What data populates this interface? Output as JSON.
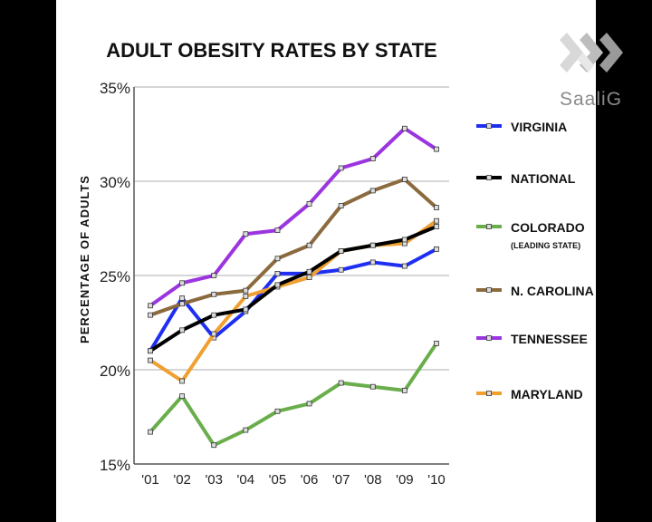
{
  "watermark": {
    "text": "SaaliG",
    "icon": "saalig-logo-icon"
  },
  "chart_data": {
    "type": "line",
    "title": "ADULT OBESITY RATES BY STATE",
    "xlabel": "",
    "ylabel": "PERCENTAGE OF ADULTS",
    "categories": [
      "'01",
      "'02",
      "'03",
      "'04",
      "'05",
      "'06",
      "'07",
      "'08",
      "'09",
      "'10"
    ],
    "yticks": [
      "15%",
      "20%",
      "25%",
      "30%",
      "35%"
    ],
    "ylim": [
      15,
      35
    ],
    "grid": true,
    "legend": "right",
    "series": [
      {
        "name": "VIRGINIA",
        "sub": "",
        "color": "#1f2ff2",
        "values": [
          21.0,
          23.8,
          21.7,
          23.1,
          25.1,
          25.1,
          25.3,
          25.7,
          25.5,
          26.4
        ]
      },
      {
        "name": "NATIONAL",
        "sub": "",
        "color": "#000000",
        "values": [
          21.0,
          22.1,
          22.9,
          23.2,
          24.5,
          25.2,
          26.3,
          26.6,
          26.9,
          27.6
        ]
      },
      {
        "name": "COLORADO",
        "sub": "(LEADING STATE)",
        "color": "#6aae4c",
        "values": [
          16.7,
          18.6,
          16.0,
          16.8,
          17.8,
          18.2,
          19.3,
          19.1,
          18.9,
          21.4
        ]
      },
      {
        "name": "N. CAROLINA",
        "sub": "",
        "color": "#8b6a3e",
        "values": [
          22.9,
          23.5,
          24.0,
          24.2,
          25.9,
          26.6,
          28.7,
          29.5,
          30.1,
          28.6
        ]
      },
      {
        "name": "TENNESSEE",
        "sub": "",
        "color": "#9b35e0",
        "values": [
          23.4,
          24.6,
          25.0,
          27.2,
          27.4,
          28.8,
          30.7,
          31.2,
          32.8,
          31.7
        ]
      },
      {
        "name": "MARYLAND",
        "sub": "",
        "color": "#f0a030",
        "values": [
          20.5,
          19.4,
          21.9,
          23.9,
          24.4,
          24.9,
          26.3,
          26.6,
          26.7,
          27.9
        ]
      }
    ]
  }
}
